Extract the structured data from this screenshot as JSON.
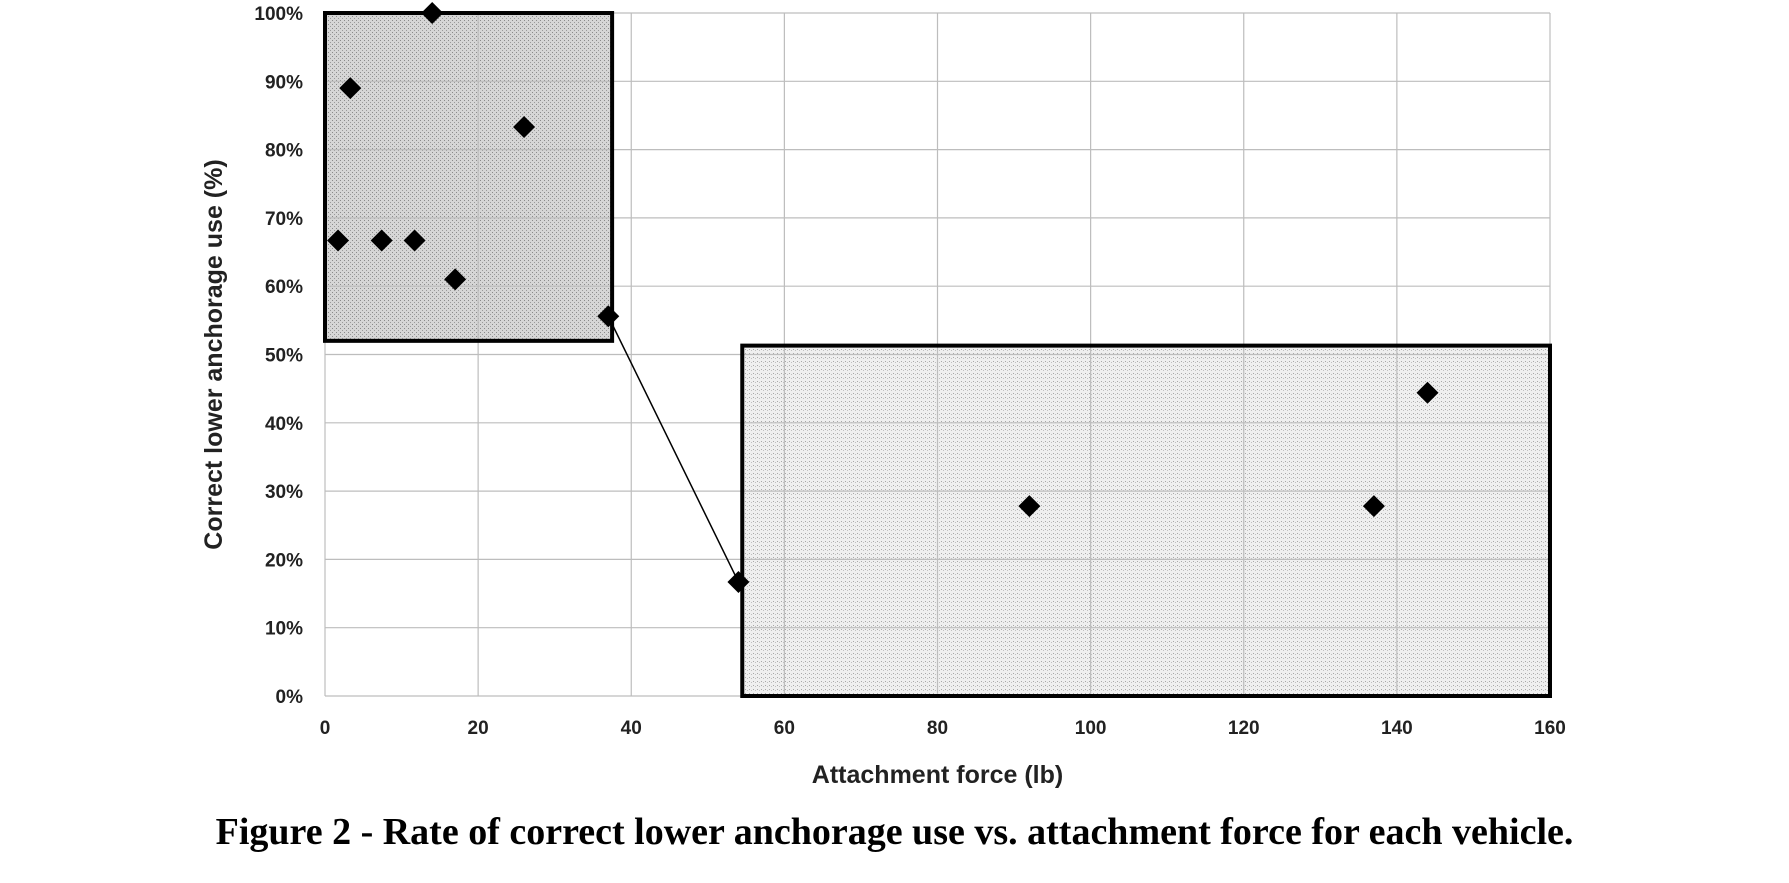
{
  "chart_data": {
    "type": "scatter",
    "title": "",
    "xlabel": "Attachment force (lb)",
    "ylabel": "Correct lower anchorage use (%)",
    "xlim": [
      0,
      160
    ],
    "ylim": [
      0,
      100
    ],
    "x_ticks": [
      0,
      20,
      40,
      60,
      80,
      100,
      120,
      140,
      160
    ],
    "y_ticks": [
      0,
      10,
      20,
      30,
      40,
      50,
      60,
      70,
      80,
      90,
      100
    ],
    "y_tick_suffix": "%",
    "grid": true,
    "points": [
      {
        "x": 1.7,
        "y": 66.7
      },
      {
        "x": 3.3,
        "y": 89
      },
      {
        "x": 7.4,
        "y": 66.7
      },
      {
        "x": 11.7,
        "y": 66.7
      },
      {
        "x": 14,
        "y": 100
      },
      {
        "x": 17,
        "y": 61
      },
      {
        "x": 26,
        "y": 83.3
      },
      {
        "x": 37,
        "y": 55.6
      },
      {
        "x": 54,
        "y": 16.7
      },
      {
        "x": 92,
        "y": 27.8
      },
      {
        "x": 137,
        "y": 27.8
      },
      {
        "x": 144,
        "y": 44.4
      }
    ],
    "connector": {
      "from": {
        "x": 37,
        "y": 55.6
      },
      "to": {
        "x": 54,
        "y": 16.7
      }
    },
    "regions": [
      {
        "x": [
          0,
          37.5
        ],
        "y": [
          52,
          100
        ],
        "fill": "#cfcfcf"
      },
      {
        "x": [
          54.5,
          160
        ],
        "y": [
          0,
          51.3
        ],
        "fill": "#e7e7e7"
      }
    ],
    "marker_color": "#000000",
    "grid_color": "#bdbdbd"
  },
  "caption": "Figure 2 - Rate of correct lower anchorage use vs. attachment force for each vehicle."
}
